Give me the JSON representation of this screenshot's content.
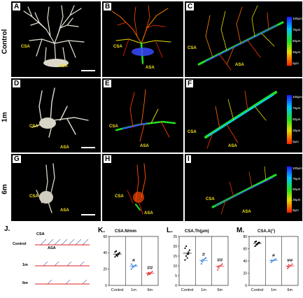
{
  "rows": [
    {
      "label": "Control"
    },
    {
      "label": "1m"
    },
    {
      "label": "6m"
    }
  ],
  "panels": {
    "A": {
      "letter": "A",
      "csa": "CSA",
      "asa": "ASA"
    },
    "B": {
      "letter": "B",
      "csa": "CSA",
      "asa": "ASA"
    },
    "C": {
      "letter": "C",
      "csa": "CSA",
      "asa": "ASA"
    },
    "D": {
      "letter": "D",
      "csa": "CSA",
      "asa": "ASA"
    },
    "E": {
      "letter": "E",
      "csa": "CSA",
      "asa": "ASA"
    },
    "F": {
      "letter": "F",
      "csa": "CSA",
      "asa": "ASA"
    },
    "G": {
      "letter": "G",
      "csa": "CSA",
      "asa": "ASA"
    },
    "H": {
      "letter": "H",
      "csa": "CSA",
      "asa": "ASA"
    },
    "I": {
      "letter": "I",
      "csa": "CSA",
      "asa": "ASA"
    }
  },
  "colorbar_ticks": [
    "100μm",
    "75μm",
    "50μm",
    "25μm",
    "0μm"
  ],
  "panel_j": {
    "letter": "J.",
    "csa": "CSA",
    "asa": "ASA",
    "rows": [
      "Control",
      "1m",
      "6m"
    ]
  },
  "chart_data": [
    {
      "type": "scatter",
      "letter": "K.",
      "title": "CSA.N/mm",
      "categories": [
        "Control",
        "1m",
        "6m"
      ],
      "ylim": [
        0,
        60
      ],
      "yticks": [
        0,
        20,
        40,
        60
      ],
      "colors": [
        "#000000",
        "#4a90e2",
        "#e02020"
      ],
      "markers": [
        "circle",
        "square",
        "triangle"
      ],
      "significance": [
        "",
        "#",
        "##"
      ],
      "series": [
        {
          "values": [
            35,
            37,
            38,
            39,
            40,
            41,
            42,
            36,
            38
          ]
        },
        {
          "values": [
            20,
            22,
            23,
            24,
            25,
            26,
            24,
            23
          ]
        },
        {
          "values": [
            13,
            14,
            15,
            16,
            17,
            15,
            16,
            14
          ]
        }
      ]
    },
    {
      "type": "scatter",
      "letter": "L.",
      "title": "CSA.Th(μm)",
      "categories": [
        "Control",
        "1m",
        "6m"
      ],
      "ylim": [
        0,
        25
      ],
      "yticks": [
        0,
        5,
        10,
        15,
        20,
        25
      ],
      "colors": [
        "#000000",
        "#4a90e2",
        "#e02020"
      ],
      "markers": [
        "circle",
        "square",
        "triangle"
      ],
      "significance": [
        "",
        "#",
        "##"
      ],
      "series": [
        {
          "values": [
            13,
            15,
            16,
            17,
            18,
            19,
            20,
            14,
            16
          ]
        },
        {
          "values": [
            11,
            12,
            13,
            13.5,
            14,
            12.5,
            13
          ]
        },
        {
          "values": [
            8,
            9,
            10,
            10.5,
            11,
            9.5,
            10
          ]
        }
      ]
    },
    {
      "type": "scatter",
      "letter": "M.",
      "title": "CSA.A(°)",
      "categories": [
        "Control",
        "1m",
        "6m"
      ],
      "ylim": [
        0,
        80
      ],
      "yticks": [
        0,
        20,
        40,
        60,
        80
      ],
      "colors": [
        "#000000",
        "#4a90e2",
        "#e02020"
      ],
      "markers": [
        "circle",
        "square",
        "triangle"
      ],
      "significance": [
        "",
        "#",
        "##"
      ],
      "series": [
        {
          "values": [
            64,
            66,
            68,
            69,
            70,
            71,
            72,
            67,
            70
          ]
        },
        {
          "values": [
            38,
            40,
            41,
            42,
            43,
            41
          ]
        },
        {
          "values": [
            28,
            30,
            32,
            33,
            35,
            31,
            34
          ]
        }
      ]
    }
  ]
}
